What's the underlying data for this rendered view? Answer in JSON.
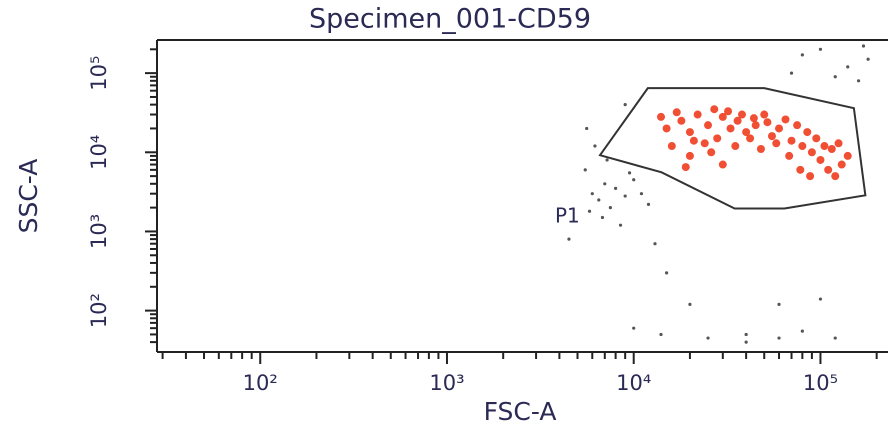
{
  "chart_data": {
    "type": "scatter",
    "title": "Specimen_001-CD59",
    "x_label": "FSC-A",
    "y_label": "SSC-A",
    "xscale": "log",
    "yscale": "log",
    "xlim": [
      28,
      230000
    ],
    "ylim": [
      30,
      262144
    ],
    "xticks": [
      {
        "value": 100,
        "label": "10²"
      },
      {
        "value": 1000,
        "label": "10³"
      },
      {
        "value": 10000,
        "label": "10⁴"
      },
      {
        "value": 100000,
        "label": "10⁵"
      }
    ],
    "yticks": [
      {
        "value": 100,
        "label": "10²"
      },
      {
        "value": 1000,
        "label": "10³"
      },
      {
        "value": 10000,
        "label": "10⁴"
      },
      {
        "value": 100000,
        "label": "10⁵"
      }
    ],
    "xminorticks": [
      30,
      40,
      50,
      60,
      70,
      80,
      90,
      200,
      300,
      400,
      500,
      600,
      700,
      800,
      900,
      2000,
      3000,
      4000,
      5000,
      6000,
      7000,
      8000,
      9000,
      20000,
      30000,
      40000,
      50000,
      60000,
      70000,
      80000,
      90000,
      200000
    ],
    "yminorticks": [
      40,
      50,
      60,
      70,
      80,
      90,
      200,
      300,
      400,
      500,
      600,
      700,
      800,
      900,
      2000,
      3000,
      4000,
      5000,
      6000,
      7000,
      8000,
      9000,
      20000,
      30000,
      40000,
      50000,
      60000,
      70000,
      80000,
      90000,
      200000
    ],
    "series": [
      {
        "color": "#f03c1e",
        "x": [
          15000,
          18000,
          20000,
          22000,
          25000,
          28000,
          30000,
          33000,
          36000,
          40000,
          45000,
          50000,
          55000,
          60000,
          70000,
          80000,
          90000,
          100000,
          110000,
          120000,
          130000,
          140000,
          16000,
          20000,
          24000,
          27000,
          32000,
          38000,
          44000,
          52000,
          65000,
          75000,
          85000,
          95000,
          105000,
          115000,
          125000,
          14000,
          17000,
          21000,
          26000,
          30000,
          35000,
          42000,
          48000,
          58000,
          68000,
          78000,
          88000,
          19000
        ],
        "y": [
          20000,
          25000,
          18000,
          30000,
          22000,
          15000,
          28000,
          20000,
          25000,
          18000,
          22000,
          30000,
          16000,
          20000,
          14000,
          12000,
          10000,
          8000,
          6000,
          5000,
          7000,
          9000,
          12000,
          9000,
          13000,
          35000,
          33000,
          30000,
          27000,
          24000,
          26000,
          22000,
          18000,
          15000,
          12000,
          11000,
          13000,
          28000,
          32000,
          14000,
          10000,
          7000,
          12000,
          15000,
          11000,
          13000,
          9000,
          6000,
          5000,
          6500
        ]
      },
      {
        "color": "#555555",
        "x": [
          5500,
          6000,
          6500,
          7000,
          7500,
          8000,
          9000,
          10000,
          11000,
          12000,
          6800,
          5800,
          8500,
          9500,
          7200,
          6200,
          5600,
          13000,
          15000,
          20000,
          10000,
          14000,
          25000,
          40000,
          60000,
          80000,
          120000,
          60000,
          100000,
          40000,
          80000,
          100000,
          140000,
          160000,
          180000,
          70000,
          120000,
          170000,
          9000,
          4500
        ],
        "y": [
          6000,
          3000,
          2500,
          4000,
          2000,
          3500,
          2800,
          4500,
          3000,
          2200,
          1500,
          1800,
          1200,
          5500,
          8000,
          12000,
          20000,
          700,
          300,
          120,
          60,
          50,
          45,
          50,
          45,
          55,
          45,
          120,
          140,
          40,
          170000,
          200000,
          120000,
          80000,
          150000,
          100000,
          90000,
          220000,
          40000,
          800
        ]
      }
    ],
    "gates": [
      {
        "label": "P1",
        "color": "#333333",
        "x": [
          6600,
          11900,
          50000,
          151000,
          174000,
          64100,
          34700,
          14100
        ],
        "y": [
          9200,
          64600,
          64600,
          36100,
          2860,
          1950,
          1950,
          5580
        ]
      }
    ]
  }
}
